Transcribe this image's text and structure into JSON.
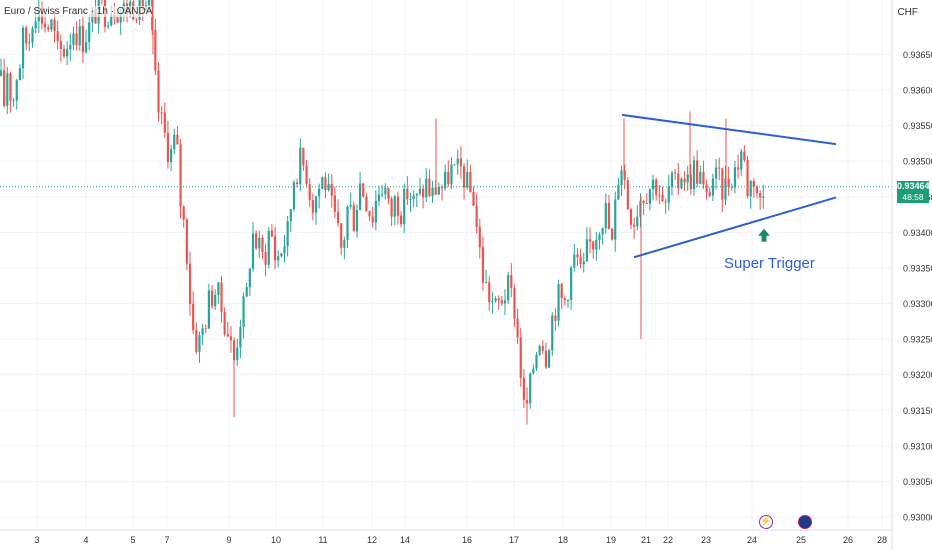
{
  "title": "Euro / Swiss Franc · 1h · OANDA",
  "currency": "CHF",
  "current_price": {
    "value": "0.93464",
    "countdown": "48:58",
    "color": "#1b9e77"
  },
  "annotation": {
    "text": "Super Trigger",
    "color": "#2b5fd6"
  },
  "colors": {
    "up": "#26a69a",
    "down": "#ef5350",
    "trendline": "#2b5fd6",
    "arrow": "#1b8a6b",
    "grid": "#f0f3fa"
  },
  "icons": [
    "lightning-event-icon",
    "economic-event-icon"
  ],
  "chart_data": {
    "type": "candlestick",
    "ylim": [
      0.9298,
      0.9371
    ],
    "y_ticks": [
      "0.93000",
      "0.93050",
      "0.93100",
      "0.93150",
      "0.93200",
      "0.93250",
      "0.93300",
      "0.93350",
      "0.93400",
      "0.93450",
      "0.93500",
      "0.93550",
      "0.93600",
      "0.93650"
    ],
    "x_ticks": [
      "3",
      "4",
      "5",
      "7",
      "9",
      "10",
      "11",
      "12",
      "14",
      "16",
      "17",
      "18",
      "19",
      "21",
      "22",
      "23",
      "24",
      "25",
      "26",
      "28"
    ],
    "current_price": 0.93464,
    "anchors": [
      [
        0,
        0.9362
      ],
      [
        4,
        0.9358
      ],
      [
        8,
        0.9364
      ],
      [
        12,
        0.9357
      ],
      [
        16,
        0.9362
      ],
      [
        20,
        0.9364
      ],
      [
        24,
        0.9368
      ],
      [
        28,
        0.9366
      ],
      [
        34,
        0.9372
      ],
      [
        40,
        0.9371
      ],
      [
        46,
        0.9369
      ],
      [
        52,
        0.9369
      ],
      [
        58,
        0.9365
      ],
      [
        66,
        0.9366
      ],
      [
        74,
        0.9369
      ],
      [
        82,
        0.9367
      ],
      [
        90,
        0.9369
      ],
      [
        98,
        0.9372
      ],
      [
        106,
        0.9371
      ],
      [
        114,
        0.9372
      ],
      [
        122,
        0.9371
      ],
      [
        130,
        0.9372
      ],
      [
        138,
        0.9372
      ],
      [
        146,
        0.9372
      ],
      [
        150,
        0.9372
      ],
      [
        153,
        0.9365
      ],
      [
        157,
        0.9358
      ],
      [
        162,
        0.9355
      ],
      [
        168,
        0.9352
      ],
      [
        172,
        0.9351
      ],
      [
        176,
        0.9354
      ],
      [
        180,
        0.9345
      ],
      [
        186,
        0.9339
      ],
      [
        192,
        0.9327
      ],
      [
        198,
        0.9324
      ],
      [
        204,
        0.9327
      ],
      [
        210,
        0.9331
      ],
      [
        216,
        0.9332
      ],
      [
        222,
        0.9329
      ],
      [
        228,
        0.9326
      ],
      [
        234,
        0.9322
      ],
      [
        240,
        0.9328
      ],
      [
        246,
        0.933
      ],
      [
        252,
        0.934
      ],
      [
        258,
        0.9338
      ],
      [
        264,
        0.9336
      ],
      [
        270,
        0.9341
      ],
      [
        276,
        0.9336
      ],
      [
        282,
        0.9338
      ],
      [
        288,
        0.934
      ],
      [
        294,
        0.9348
      ],
      [
        300,
        0.935
      ],
      [
        306,
        0.9349
      ],
      [
        312,
        0.9344
      ],
      [
        318,
        0.9346
      ],
      [
        324,
        0.9348
      ],
      [
        330,
        0.9344
      ],
      [
        336,
        0.9341
      ],
      [
        342,
        0.9337
      ],
      [
        348,
        0.9344
      ],
      [
        354,
        0.9342
      ],
      [
        360,
        0.9347
      ],
      [
        366,
        0.9345
      ],
      [
        372,
        0.9342
      ],
      [
        378,
        0.9346
      ],
      [
        384,
        0.9347
      ],
      [
        390,
        0.9342
      ],
      [
        396,
        0.9345
      ],
      [
        402,
        0.9343
      ],
      [
        408,
        0.9346
      ],
      [
        414,
        0.9344
      ],
      [
        420,
        0.9345
      ],
      [
        426,
        0.9347
      ],
      [
        432,
        0.9345
      ],
      [
        438,
        0.9347
      ],
      [
        444,
        0.9346
      ],
      [
        450,
        0.9349
      ],
      [
        456,
        0.9348
      ],
      [
        462,
        0.9349
      ],
      [
        468,
        0.9346
      ],
      [
        474,
        0.9345
      ],
      [
        478,
        0.9339
      ],
      [
        484,
        0.9333
      ],
      [
        490,
        0.9331
      ],
      [
        496,
        0.9329
      ],
      [
        502,
        0.9331
      ],
      [
        508,
        0.9332
      ],
      [
        514,
        0.933
      ],
      [
        520,
        0.9322
      ],
      [
        524,
        0.9315
      ],
      [
        528,
        0.9316
      ],
      [
        534,
        0.9322
      ],
      [
        540,
        0.9326
      ],
      [
        546,
        0.9323
      ],
      [
        552,
        0.9328
      ],
      [
        558,
        0.9331
      ],
      [
        564,
        0.933
      ],
      [
        570,
        0.9334
      ],
      [
        576,
        0.9337
      ],
      [
        582,
        0.9333
      ],
      [
        588,
        0.9338
      ],
      [
        594,
        0.9339
      ],
      [
        600,
        0.9342
      ],
      [
        606,
        0.9343
      ],
      [
        612,
        0.9338
      ],
      [
        618,
        0.9348
      ],
      [
        622,
        0.935
      ],
      [
        628,
        0.9344
      ],
      [
        634,
        0.9342
      ],
      [
        640,
        0.9345
      ],
      [
        646,
        0.9346
      ],
      [
        652,
        0.9347
      ],
      [
        658,
        0.9347
      ],
      [
        664,
        0.9342
      ],
      [
        670,
        0.9347
      ],
      [
        676,
        0.9346
      ],
      [
        682,
        0.9349
      ],
      [
        688,
        0.9347
      ],
      [
        694,
        0.9349
      ],
      [
        700,
        0.9348
      ],
      [
        706,
        0.9344
      ],
      [
        712,
        0.9348
      ],
      [
        718,
        0.9347
      ],
      [
        724,
        0.9346
      ],
      [
        730,
        0.9348
      ],
      [
        736,
        0.9349
      ],
      [
        742,
        0.9352
      ],
      [
        748,
        0.9346
      ],
      [
        754,
        0.9348
      ],
      [
        760,
        0.9344
      ],
      [
        766,
        0.93464
      ]
    ],
    "wick_spikes": [
      [
        641,
        0.9325
      ],
      [
        624,
        0.9356
      ],
      [
        153,
        0.9376
      ],
      [
        234,
        0.9314
      ],
      [
        527,
        0.9313
      ],
      [
        436,
        0.9356
      ],
      [
        690,
        0.9357
      ],
      [
        726,
        0.9356
      ]
    ],
    "trendlines": [
      {
        "name": "upper",
        "points": [
          [
            622,
            0.93565
          ],
          [
            836,
            0.93524
          ]
        ]
      },
      {
        "name": "lower",
        "points": [
          [
            634,
            0.93365
          ],
          [
            836,
            0.93449
          ]
        ]
      }
    ],
    "arrow": {
      "x": 764,
      "price": 0.93405,
      "direction": "up"
    }
  }
}
